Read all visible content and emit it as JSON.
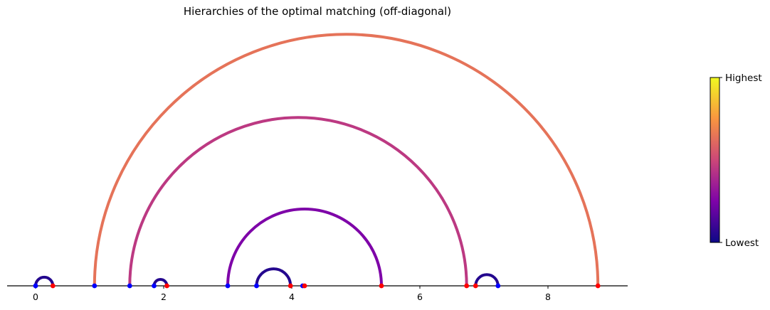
{
  "chart_data": {
    "type": "arc",
    "title": "Hierarchies of the optimal matching (off-diagonal)",
    "xlabel": "",
    "ylabel": "",
    "xlim": [
      -0.45,
      9.2
    ],
    "xticks": [
      0,
      2,
      4,
      6,
      8
    ],
    "xtick_labels": [
      "0",
      "2",
      "4",
      "6",
      "8"
    ],
    "grid": false,
    "colormap": "plasma",
    "colorbar": {
      "top_label": "Highest",
      "bottom_label": "Lowest"
    },
    "arcs": [
      {
        "start": 0.0,
        "end": 0.27,
        "level": 0.05
      },
      {
        "start": 1.85,
        "end": 2.05,
        "level": 0.05
      },
      {
        "start": 3.45,
        "end": 3.98,
        "level": 0.05
      },
      {
        "start": 6.87,
        "end": 7.22,
        "level": 0.05
      },
      {
        "start": 3.0,
        "end": 5.4,
        "level": 0.25
      },
      {
        "start": 1.47,
        "end": 6.73,
        "level": 0.45
      },
      {
        "start": 0.92,
        "end": 8.78,
        "level": 0.64
      }
    ],
    "blue_points": [
      0.0,
      0.92,
      1.47,
      1.85,
      3.0,
      3.45,
      4.17,
      7.22
    ],
    "red_points": [
      0.27,
      2.05,
      3.98,
      4.2,
      5.4,
      6.73,
      6.87,
      8.78
    ],
    "colors": {
      "blue_point": "#0000ff",
      "red_point": "#ff0000",
      "axis": "#000000"
    }
  }
}
